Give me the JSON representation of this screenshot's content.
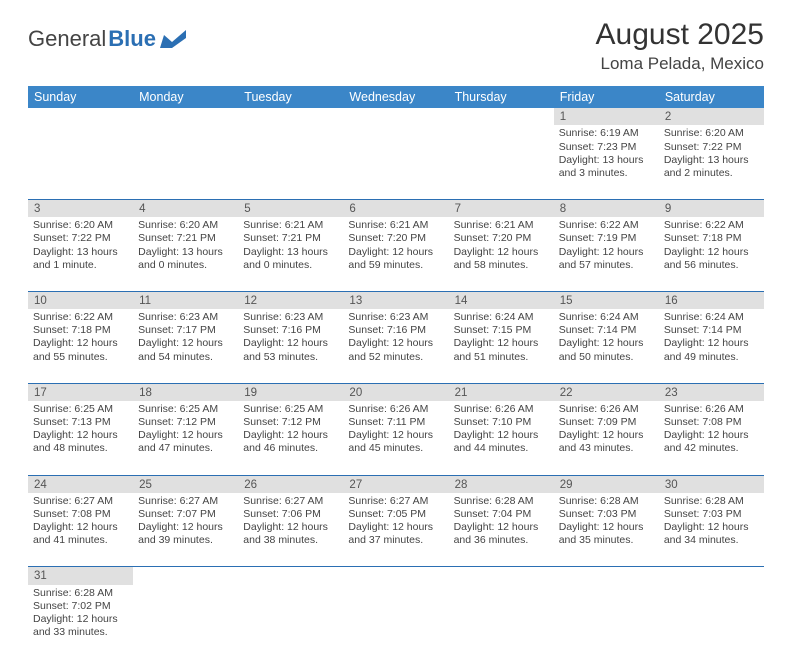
{
  "brand": {
    "left": "General",
    "right": "Blue"
  },
  "header": {
    "month": "August 2025",
    "location": "Loma Pelada, Mexico"
  },
  "colors": {
    "header_bg": "#3b86c8",
    "row_divider": "#2b6fb3",
    "daynum_bg": "#e0e0e0",
    "text": "#444444"
  },
  "columns": [
    "Sunday",
    "Monday",
    "Tuesday",
    "Wednesday",
    "Thursday",
    "Friday",
    "Saturday"
  ],
  "weeks": [
    [
      null,
      null,
      null,
      null,
      null,
      {
        "n": "1",
        "sunrise": "Sunrise: 6:19 AM",
        "sunset": "Sunset: 7:23 PM",
        "daylight": "Daylight: 13 hours and 3 minutes."
      },
      {
        "n": "2",
        "sunrise": "Sunrise: 6:20 AM",
        "sunset": "Sunset: 7:22 PM",
        "daylight": "Daylight: 13 hours and 2 minutes."
      }
    ],
    [
      {
        "n": "3",
        "sunrise": "Sunrise: 6:20 AM",
        "sunset": "Sunset: 7:22 PM",
        "daylight": "Daylight: 13 hours and 1 minute."
      },
      {
        "n": "4",
        "sunrise": "Sunrise: 6:20 AM",
        "sunset": "Sunset: 7:21 PM",
        "daylight": "Daylight: 13 hours and 0 minutes."
      },
      {
        "n": "5",
        "sunrise": "Sunrise: 6:21 AM",
        "sunset": "Sunset: 7:21 PM",
        "daylight": "Daylight: 13 hours and 0 minutes."
      },
      {
        "n": "6",
        "sunrise": "Sunrise: 6:21 AM",
        "sunset": "Sunset: 7:20 PM",
        "daylight": "Daylight: 12 hours and 59 minutes."
      },
      {
        "n": "7",
        "sunrise": "Sunrise: 6:21 AM",
        "sunset": "Sunset: 7:20 PM",
        "daylight": "Daylight: 12 hours and 58 minutes."
      },
      {
        "n": "8",
        "sunrise": "Sunrise: 6:22 AM",
        "sunset": "Sunset: 7:19 PM",
        "daylight": "Daylight: 12 hours and 57 minutes."
      },
      {
        "n": "9",
        "sunrise": "Sunrise: 6:22 AM",
        "sunset": "Sunset: 7:18 PM",
        "daylight": "Daylight: 12 hours and 56 minutes."
      }
    ],
    [
      {
        "n": "10",
        "sunrise": "Sunrise: 6:22 AM",
        "sunset": "Sunset: 7:18 PM",
        "daylight": "Daylight: 12 hours and 55 minutes."
      },
      {
        "n": "11",
        "sunrise": "Sunrise: 6:23 AM",
        "sunset": "Sunset: 7:17 PM",
        "daylight": "Daylight: 12 hours and 54 minutes."
      },
      {
        "n": "12",
        "sunrise": "Sunrise: 6:23 AM",
        "sunset": "Sunset: 7:16 PM",
        "daylight": "Daylight: 12 hours and 53 minutes."
      },
      {
        "n": "13",
        "sunrise": "Sunrise: 6:23 AM",
        "sunset": "Sunset: 7:16 PM",
        "daylight": "Daylight: 12 hours and 52 minutes."
      },
      {
        "n": "14",
        "sunrise": "Sunrise: 6:24 AM",
        "sunset": "Sunset: 7:15 PM",
        "daylight": "Daylight: 12 hours and 51 minutes."
      },
      {
        "n": "15",
        "sunrise": "Sunrise: 6:24 AM",
        "sunset": "Sunset: 7:14 PM",
        "daylight": "Daylight: 12 hours and 50 minutes."
      },
      {
        "n": "16",
        "sunrise": "Sunrise: 6:24 AM",
        "sunset": "Sunset: 7:14 PM",
        "daylight": "Daylight: 12 hours and 49 minutes."
      }
    ],
    [
      {
        "n": "17",
        "sunrise": "Sunrise: 6:25 AM",
        "sunset": "Sunset: 7:13 PM",
        "daylight": "Daylight: 12 hours and 48 minutes."
      },
      {
        "n": "18",
        "sunrise": "Sunrise: 6:25 AM",
        "sunset": "Sunset: 7:12 PM",
        "daylight": "Daylight: 12 hours and 47 minutes."
      },
      {
        "n": "19",
        "sunrise": "Sunrise: 6:25 AM",
        "sunset": "Sunset: 7:12 PM",
        "daylight": "Daylight: 12 hours and 46 minutes."
      },
      {
        "n": "20",
        "sunrise": "Sunrise: 6:26 AM",
        "sunset": "Sunset: 7:11 PM",
        "daylight": "Daylight: 12 hours and 45 minutes."
      },
      {
        "n": "21",
        "sunrise": "Sunrise: 6:26 AM",
        "sunset": "Sunset: 7:10 PM",
        "daylight": "Daylight: 12 hours and 44 minutes."
      },
      {
        "n": "22",
        "sunrise": "Sunrise: 6:26 AM",
        "sunset": "Sunset: 7:09 PM",
        "daylight": "Daylight: 12 hours and 43 minutes."
      },
      {
        "n": "23",
        "sunrise": "Sunrise: 6:26 AM",
        "sunset": "Sunset: 7:08 PM",
        "daylight": "Daylight: 12 hours and 42 minutes."
      }
    ],
    [
      {
        "n": "24",
        "sunrise": "Sunrise: 6:27 AM",
        "sunset": "Sunset: 7:08 PM",
        "daylight": "Daylight: 12 hours and 41 minutes."
      },
      {
        "n": "25",
        "sunrise": "Sunrise: 6:27 AM",
        "sunset": "Sunset: 7:07 PM",
        "daylight": "Daylight: 12 hours and 39 minutes."
      },
      {
        "n": "26",
        "sunrise": "Sunrise: 6:27 AM",
        "sunset": "Sunset: 7:06 PM",
        "daylight": "Daylight: 12 hours and 38 minutes."
      },
      {
        "n": "27",
        "sunrise": "Sunrise: 6:27 AM",
        "sunset": "Sunset: 7:05 PM",
        "daylight": "Daylight: 12 hours and 37 minutes."
      },
      {
        "n": "28",
        "sunrise": "Sunrise: 6:28 AM",
        "sunset": "Sunset: 7:04 PM",
        "daylight": "Daylight: 12 hours and 36 minutes."
      },
      {
        "n": "29",
        "sunrise": "Sunrise: 6:28 AM",
        "sunset": "Sunset: 7:03 PM",
        "daylight": "Daylight: 12 hours and 35 minutes."
      },
      {
        "n": "30",
        "sunrise": "Sunrise: 6:28 AM",
        "sunset": "Sunset: 7:03 PM",
        "daylight": "Daylight: 12 hours and 34 minutes."
      }
    ],
    [
      {
        "n": "31",
        "sunrise": "Sunrise: 6:28 AM",
        "sunset": "Sunset: 7:02 PM",
        "daylight": "Daylight: 12 hours and 33 minutes."
      },
      null,
      null,
      null,
      null,
      null,
      null
    ]
  ]
}
